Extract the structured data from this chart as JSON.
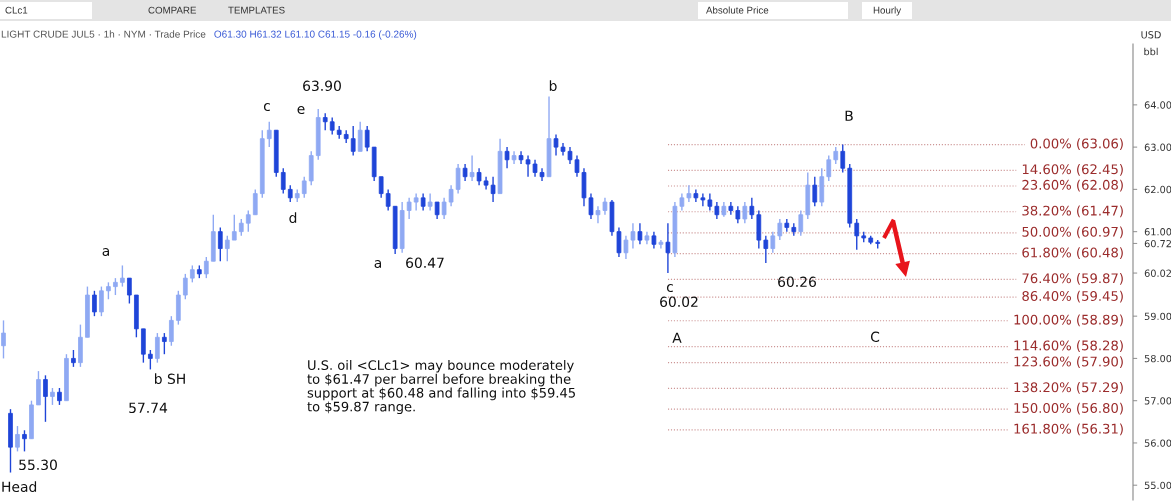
{
  "chart_data": {
    "type": "candlestick",
    "title": "LIGHT CRUDE JUL5 · 1h · NYM · Trade Price",
    "subtitle": "O61.30 H61.32 L61.10 C61.15 -0.16 (-0.26%)",
    "ylabel": "USD\nbbl",
    "categories": [
      null,
      null,
      null,
      null,
      null,
      null,
      null,
      null,
      null,
      null,
      null,
      null,
      null,
      null,
      null,
      null,
      null,
      null,
      null,
      null,
      null,
      null,
      null,
      null,
      null,
      null,
      null,
      null,
      null,
      null,
      null,
      null,
      null,
      null,
      null,
      null,
      null,
      null,
      null,
      null,
      null,
      null,
      null,
      null,
      null,
      null,
      null,
      null,
      null,
      null,
      null,
      null,
      null,
      null,
      null,
      null,
      null,
      null,
      null,
      null,
      null,
      null,
      null,
      null,
      null,
      null,
      null,
      null,
      null,
      null,
      null,
      null,
      null,
      null,
      null,
      null,
      null,
      null,
      null,
      null,
      null,
      null,
      null,
      null,
      null,
      null,
      null,
      null,
      null,
      null,
      null,
      null,
      null,
      null,
      null,
      null,
      null,
      null,
      null,
      null,
      null,
      null,
      null,
      null,
      null,
      null,
      null,
      null,
      null,
      null,
      null,
      null,
      null,
      null,
      null,
      null,
      null,
      null,
      null,
      null,
      null,
      null,
      null,
      null,
      null,
      null,
      null,
      null,
      null,
      null,
      null,
      null,
      null,
      null,
      null,
      null,
      null,
      null,
      null,
      null,
      null,
      null,
      null,
      null,
      null,
      null,
      null,
      null,
      null,
      null,
      null,
      null,
      null,
      null,
      null,
      null,
      null,
      null,
      null,
      null,
      null,
      null
    ],
    "ohlc": [
      [
        58.3,
        58.9,
        58.0,
        58.6
      ],
      [
        56.7,
        56.8,
        55.3,
        55.9
      ],
      [
        55.9,
        56.4,
        55.8,
        56.2
      ],
      [
        56.2,
        56.3,
        55.8,
        56.1
      ],
      [
        56.1,
        57.0,
        56.1,
        56.9
      ],
      [
        56.9,
        57.7,
        56.9,
        57.5
      ],
      [
        57.5,
        57.6,
        56.5,
        57.1
      ],
      [
        57.1,
        57.3,
        56.9,
        57.2
      ],
      [
        57.2,
        57.3,
        56.9,
        57.0
      ],
      [
        57.0,
        58.1,
        57.0,
        58.0
      ],
      [
        58.0,
        58.2,
        57.8,
        57.9
      ],
      [
        57.9,
        58.8,
        57.8,
        58.5
      ],
      [
        58.5,
        59.7,
        58.5,
        59.5
      ],
      [
        59.5,
        59.6,
        59.0,
        59.1
      ],
      [
        59.1,
        59.7,
        59.0,
        59.6
      ],
      [
        59.6,
        59.8,
        59.4,
        59.7
      ],
      [
        59.7,
        59.9,
        59.5,
        59.8
      ],
      [
        59.8,
        60.2,
        59.7,
        59.9
      ],
      [
        59.9,
        59.9,
        59.3,
        59.5
      ],
      [
        59.5,
        59.5,
        58.5,
        58.7
      ],
      [
        58.7,
        58.7,
        57.9,
        58.1
      ],
      [
        58.1,
        58.2,
        57.74,
        58.0
      ],
      [
        58.0,
        58.6,
        57.9,
        58.5
      ],
      [
        58.5,
        58.6,
        58.1,
        58.4
      ],
      [
        58.4,
        59.0,
        58.3,
        58.9
      ],
      [
        58.9,
        59.6,
        58.8,
        59.5
      ],
      [
        59.5,
        60.0,
        59.4,
        59.9
      ],
      [
        59.9,
        60.2,
        59.8,
        60.1
      ],
      [
        60.1,
        60.2,
        59.9,
        60.0
      ],
      [
        60.0,
        60.4,
        59.9,
        60.3
      ],
      [
        60.3,
        61.4,
        60.3,
        61.0
      ],
      [
        61.0,
        61.1,
        60.3,
        60.6
      ],
      [
        60.6,
        60.9,
        60.3,
        60.8
      ],
      [
        60.8,
        61.4,
        60.8,
        61.0
      ],
      [
        61.0,
        61.3,
        60.9,
        61.2
      ],
      [
        61.2,
        61.5,
        61.0,
        61.4
      ],
      [
        61.4,
        62.0,
        61.4,
        61.9
      ],
      [
        61.9,
        63.4,
        61.8,
        63.2
      ],
      [
        63.2,
        63.6,
        63.0,
        63.4
      ],
      [
        63.4,
        63.4,
        62.3,
        62.4
      ],
      [
        62.4,
        62.5,
        61.9,
        62.0
      ],
      [
        62.0,
        62.1,
        61.7,
        61.8
      ],
      [
        61.8,
        62.0,
        61.7,
        61.9
      ],
      [
        61.9,
        62.3,
        61.8,
        62.2
      ],
      [
        62.2,
        62.9,
        62.1,
        62.8
      ],
      [
        62.8,
        63.9,
        62.7,
        63.7
      ],
      [
        63.7,
        63.8,
        63.4,
        63.6
      ],
      [
        63.6,
        63.7,
        63.3,
        63.4
      ],
      [
        63.4,
        63.5,
        63.2,
        63.3
      ],
      [
        63.3,
        63.4,
        63.1,
        63.2
      ],
      [
        63.2,
        63.5,
        62.8,
        62.9
      ],
      [
        62.9,
        63.6,
        62.9,
        63.4
      ],
      [
        63.4,
        63.5,
        62.9,
        63.0
      ],
      [
        63.0,
        63.0,
        62.2,
        62.3
      ],
      [
        62.3,
        62.3,
        61.8,
        61.9
      ],
      [
        61.9,
        62.0,
        61.5,
        61.6
      ],
      [
        61.6,
        61.6,
        60.47,
        60.6
      ],
      [
        60.6,
        61.7,
        60.5,
        61.5
      ],
      [
        61.5,
        61.8,
        61.3,
        61.7
      ],
      [
        61.7,
        61.9,
        61.5,
        61.8
      ],
      [
        61.8,
        61.9,
        61.5,
        61.6
      ],
      [
        61.6,
        61.9,
        61.5,
        61.7
      ],
      [
        61.7,
        61.7,
        61.3,
        61.4
      ],
      [
        61.4,
        61.8,
        61.3,
        61.7
      ],
      [
        61.7,
        62.1,
        61.6,
        62.0
      ],
      [
        62.0,
        62.6,
        61.9,
        62.5
      ],
      [
        62.5,
        62.6,
        62.2,
        62.3
      ],
      [
        62.3,
        62.8,
        62.2,
        62.4
      ],
      [
        62.4,
        62.5,
        62.1,
        62.2
      ],
      [
        62.2,
        62.3,
        62.0,
        62.1
      ],
      [
        62.1,
        62.3,
        61.7,
        61.9
      ],
      [
        61.9,
        63.2,
        61.9,
        62.9
      ],
      [
        62.9,
        63.0,
        62.5,
        62.7
      ],
      [
        62.7,
        62.9,
        62.6,
        62.8
      ],
      [
        62.8,
        62.9,
        62.6,
        62.7
      ],
      [
        62.7,
        62.8,
        62.3,
        62.6
      ],
      [
        62.6,
        62.7,
        62.3,
        62.4
      ],
      [
        62.4,
        62.5,
        62.2,
        62.3
      ],
      [
        62.3,
        64.2,
        62.3,
        63.2
      ],
      [
        63.2,
        63.3,
        62.8,
        63.0
      ],
      [
        63.0,
        63.1,
        62.8,
        62.9
      ],
      [
        62.9,
        63.0,
        62.6,
        62.7
      ],
      [
        62.7,
        62.8,
        62.3,
        62.4
      ],
      [
        62.4,
        62.5,
        61.6,
        61.8
      ],
      [
        61.8,
        61.9,
        61.3,
        61.4
      ],
      [
        61.4,
        61.6,
        61.2,
        61.5
      ],
      [
        61.5,
        61.8,
        61.4,
        61.7
      ],
      [
        61.7,
        61.75,
        60.9,
        61.0
      ],
      [
        61.0,
        61.1,
        60.4,
        60.5
      ],
      [
        60.5,
        60.9,
        60.35,
        60.8
      ],
      [
        60.8,
        61.2,
        60.6,
        61.0
      ],
      [
        61.0,
        61.2,
        60.7,
        60.8
      ],
      [
        60.8,
        61.0,
        60.7,
        60.9
      ],
      [
        60.9,
        61.0,
        60.6,
        60.7
      ],
      [
        60.7,
        60.8,
        60.6,
        60.75
      ],
      [
        60.75,
        61.2,
        60.02,
        60.5
      ],
      [
        60.5,
        61.7,
        60.4,
        61.6
      ],
      [
        61.6,
        61.9,
        61.5,
        61.8
      ],
      [
        61.8,
        62.1,
        61.7,
        61.9
      ],
      [
        61.9,
        62.0,
        61.7,
        61.8
      ],
      [
        61.8,
        61.9,
        61.6,
        61.75
      ],
      [
        61.75,
        61.9,
        61.5,
        61.6
      ],
      [
        61.6,
        61.7,
        61.3,
        61.4
      ],
      [
        61.4,
        61.7,
        61.35,
        61.6
      ],
      [
        61.6,
        61.7,
        61.4,
        61.5
      ],
      [
        61.5,
        61.6,
        61.2,
        61.3
      ],
      [
        61.3,
        61.7,
        61.2,
        61.6
      ],
      [
        61.6,
        61.8,
        61.3,
        61.4
      ],
      [
        61.4,
        61.5,
        60.6,
        60.8
      ],
      [
        60.8,
        60.9,
        60.26,
        60.6
      ],
      [
        60.6,
        61.0,
        60.5,
        60.9
      ],
      [
        60.9,
        61.3,
        60.8,
        61.2
      ],
      [
        61.2,
        61.3,
        61.0,
        61.1
      ],
      [
        61.1,
        61.2,
        60.9,
        61.0
      ],
      [
        61.0,
        61.5,
        60.9,
        61.4
      ],
      [
        61.4,
        62.4,
        61.3,
        62.1
      ],
      [
        62.1,
        62.3,
        61.6,
        61.7
      ],
      [
        61.7,
        62.5,
        61.6,
        62.3
      ],
      [
        62.3,
        62.8,
        62.2,
        62.7
      ],
      [
        62.7,
        63.0,
        62.6,
        62.9
      ],
      [
        62.9,
        63.06,
        62.4,
        62.5
      ],
      [
        62.5,
        62.6,
        61.1,
        61.2
      ],
      [
        61.2,
        61.3,
        60.57,
        60.9
      ],
      [
        60.9,
        61.0,
        60.75,
        60.85
      ],
      [
        60.85,
        60.9,
        60.7,
        60.75
      ],
      [
        60.75,
        60.8,
        60.6,
        60.72
      ],
      null,
      null,
      null,
      null,
      null,
      null,
      null,
      null,
      null,
      null,
      null,
      null,
      null,
      null,
      null,
      null,
      null,
      null,
      null,
      null,
      null,
      null,
      null,
      null,
      null,
      null,
      null,
      null,
      null,
      null,
      null,
      null,
      null,
      null,
      null,
      null
    ],
    "colors": [
      "#8fa9f3",
      "#1f45d8",
      "#8fa9f3",
      "#1f45d8",
      "#8fa9f3",
      "#8fa9f3",
      "#1f45d8",
      "#8fa9f3",
      "#1f45d8",
      "#8fa9f3",
      "#1f45d8",
      "#8fa9f3",
      "#8fa9f3",
      "#1f45d8",
      "#8fa9f3",
      "#8fa9f3",
      "#8fa9f3",
      "#8fa9f3",
      "#1f45d8",
      "#1f45d8",
      "#1f45d8",
      "#1f45d8",
      "#8fa9f3",
      "#1f45d8",
      "#8fa9f3",
      "#8fa9f3",
      "#8fa9f3",
      "#8fa9f3",
      "#1f45d8",
      "#8fa9f3",
      "#8fa9f3",
      "#1f45d8",
      "#8fa9f3",
      "#8fa9f3",
      "#8fa9f3",
      "#8fa9f3",
      "#8fa9f3",
      "#8fa9f3",
      "#8fa9f3",
      "#1f45d8",
      "#1f45d8",
      "#1f45d8",
      "#8fa9f3",
      "#8fa9f3",
      "#8fa9f3",
      "#8fa9f3",
      "#1f45d8",
      "#1f45d8",
      "#1f45d8",
      "#1f45d8",
      "#1f45d8",
      "#8fa9f3",
      "#1f45d8",
      "#1f45d8",
      "#1f45d8",
      "#1f45d8",
      "#1f45d8",
      "#8fa9f3",
      "#8fa9f3",
      "#8fa9f3",
      "#1f45d8",
      "#8fa9f3",
      "#1f45d8",
      "#8fa9f3",
      "#8fa9f3",
      "#8fa9f3",
      "#1f45d8",
      "#8fa9f3",
      "#1f45d8",
      "#1f45d8",
      "#1f45d8",
      "#8fa9f3",
      "#1f45d8",
      "#8fa9f3",
      "#1f45d8",
      "#1f45d8",
      "#1f45d8",
      "#1f45d8",
      "#8fa9f3",
      "#1f45d8",
      "#1f45d8",
      "#1f45d8",
      "#1f45d8",
      "#1f45d8",
      "#1f45d8",
      "#8fa9f3",
      "#8fa9f3",
      "#1f45d8",
      "#1f45d8",
      "#8fa9f3",
      "#8fa9f3",
      "#1f45d8",
      "#8fa9f3",
      "#1f45d8",
      "#8fa9f3",
      "#1f45d8",
      "#8fa9f3",
      "#8fa9f3",
      "#8fa9f3",
      "#1f45d8",
      "#1f45d8",
      "#1f45d8",
      "#1f45d8",
      "#8fa9f3",
      "#1f45d8",
      "#1f45d8",
      "#8fa9f3",
      "#1f45d8",
      "#1f45d8",
      "#1f45d8",
      "#8fa9f3",
      "#8fa9f3",
      "#1f45d8",
      "#1f45d8",
      "#8fa9f3",
      "#8fa9f3",
      "#1f45d8",
      "#8fa9f3",
      "#8fa9f3",
      "#8fa9f3",
      "#1f45d8",
      "#1f45d8",
      "#1f45d8",
      "#1f45d8",
      "#1f45d8",
      "#1f45d8",
      null,
      null,
      null,
      null,
      null,
      null,
      null,
      null,
      null,
      null,
      null,
      null,
      null,
      null,
      null,
      null,
      null,
      null,
      null,
      null,
      null,
      null,
      null,
      null,
      null,
      null,
      null,
      null,
      null,
      null,
      null,
      null,
      null,
      null,
      null,
      null
    ],
    "ylim": [
      54.65,
      65.44
    ],
    "yticks": [
      {
        "value": 55,
        "label": "55.00"
      },
      {
        "value": 56,
        "label": "56.00"
      },
      {
        "value": 57,
        "label": "57.00"
      },
      {
        "value": 58,
        "label": "58.00"
      },
      {
        "value": 59,
        "label": "59.00"
      },
      {
        "value": 60.02,
        "label": "60.02"
      },
      {
        "value": 60.72,
        "label": "60.72"
      },
      {
        "value": 61,
        "label": "61.00"
      },
      {
        "value": 62,
        "label": "62.00"
      },
      {
        "value": 63,
        "label": "63.00"
      },
      {
        "value": 64,
        "label": "64.00"
      }
    ],
    "tick_labels": "y",
    "ref_lines": [
      {
        "axis": "y",
        "value": 63.06,
        "label": "0.00% (63.06)",
        "color": "#9b2c2c",
        "line_style": "dotted"
      },
      {
        "axis": "y",
        "value": 62.45,
        "label": "14.60% (62.45)",
        "color": "#9b2c2c",
        "line_style": "dotted"
      },
      {
        "axis": "y",
        "value": 62.08,
        "label": "23.60% (62.08)",
        "color": "#9b2c2c",
        "line_style": "dotted"
      },
      {
        "axis": "y",
        "value": 61.47,
        "label": "38.20% (61.47)",
        "color": "#9b2c2c",
        "line_style": "dotted"
      },
      {
        "axis": "y",
        "value": 60.97,
        "label": "50.00% (60.97)",
        "color": "#9b2c2c",
        "line_style": "dotted"
      },
      {
        "axis": "y",
        "value": 60.48,
        "label": "61.80% (60.48)",
        "color": "#9b2c2c",
        "line_style": "dotted"
      },
      {
        "axis": "y",
        "value": 59.87,
        "label": "76.40% (59.87)",
        "color": "#9b2c2c",
        "line_style": "dotted"
      },
      {
        "axis": "y",
        "value": 59.45,
        "label": "86.40% (59.45)",
        "color": "#9b2c2c",
        "line_style": "dotted"
      },
      {
        "axis": "y",
        "value": 58.89,
        "label": "100.00% (58.89)",
        "color": "#9b2c2c",
        "line_style": "dotted"
      },
      {
        "axis": "y",
        "value": 58.28,
        "label": "114.60% (58.28)",
        "color": "#9b2c2c",
        "line_style": "dotted"
      },
      {
        "axis": "y",
        "value": 57.9,
        "label": "123.60% (57.90)",
        "color": "#9b2c2c",
        "line_style": "dotted"
      },
      {
        "axis": "y",
        "value": 57.29,
        "label": "138.20% (57.29)",
        "color": "#9b2c2c",
        "line_style": "dotted"
      },
      {
        "axis": "y",
        "value": 56.8,
        "label": "150.00% (56.80)",
        "color": "#9b2c2c",
        "line_style": "dotted"
      },
      {
        "axis": "y",
        "value": 56.31,
        "label": "161.80% (56.31)",
        "color": "#9b2c2c",
        "line_style": "dotted"
      }
    ],
    "annotations": [
      "c",
      "e",
      "63.90",
      "b",
      "a",
      "d",
      "a",
      "60.47",
      "B",
      "c",
      "60.02",
      "60.26",
      "A",
      "C",
      "b SH",
      "57.74",
      "55.30",
      "Head",
      "U.S. oil <CLc1> may bounce moderately\nto $61.47 per barrel before breaking the\nsupport at $60.48 and falling into $59.45\nto $59.87 range.",
      "CLc1",
      "COMPARE",
      "TEMPLATES",
      "Absolute Price",
      "Hourly"
    ]
  }
}
